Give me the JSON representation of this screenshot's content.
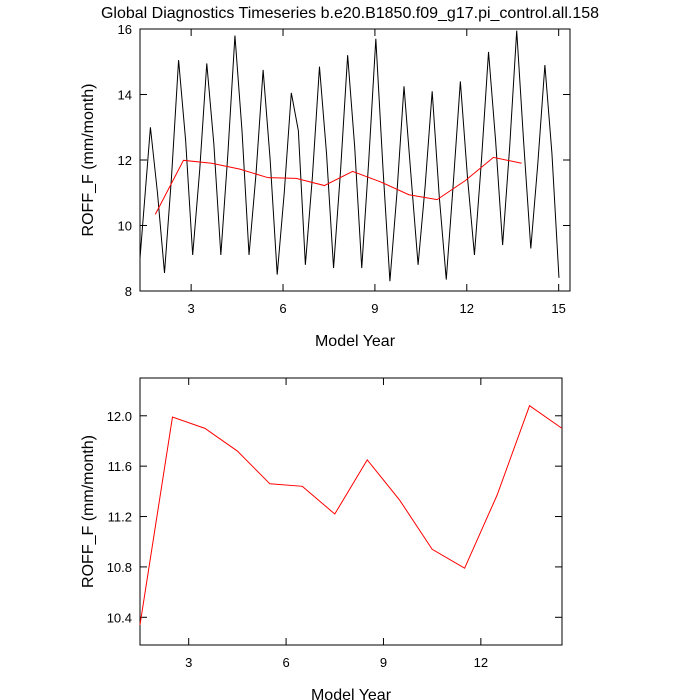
{
  "chart_data": [
    {
      "type": "line",
      "title": "Global Diagnostics Timeseries b.e20.B1850.f09_g17.pi_control.all.158",
      "xlabel": "Model Year",
      "ylabel": "ROFF_F (mm/month)",
      "xlim": [
        1.33,
        15.37
      ],
      "xticks": [
        3,
        6,
        9,
        12,
        15
      ],
      "ylim": [
        8,
        16
      ],
      "yticks": [
        8,
        10,
        12,
        14,
        16
      ],
      "series": [
        {
          "color": "#000000",
          "x": [
            1.33,
            1.5,
            1.67,
            1.9,
            2.13,
            2.36,
            2.59,
            2.82,
            3.05,
            3.28,
            3.51,
            3.74,
            3.97,
            4.2,
            4.43,
            4.66,
            4.89,
            5.12,
            5.35,
            5.58,
            5.81,
            6.04,
            6.27,
            6.5,
            6.73,
            6.96,
            7.19,
            7.42,
            7.65,
            7.88,
            8.11,
            8.34,
            8.57,
            8.8,
            9.03,
            9.26,
            9.49,
            9.72,
            9.95,
            10.18,
            10.41,
            10.64,
            10.87,
            11.1,
            11.33,
            11.56,
            11.79,
            12.02,
            12.25,
            12.48,
            12.71,
            12.94,
            13.17,
            13.4,
            13.63,
            13.86,
            14.09,
            14.32,
            14.55,
            14.78,
            15.01
          ],
          "values": [
            9.0,
            11.0,
            13.0,
            11.0,
            8.55,
            11.5,
            15.05,
            12.6,
            9.1,
            11.7,
            14.95,
            12.5,
            9.1,
            12.2,
            15.8,
            12.9,
            9.1,
            11.6,
            14.75,
            12.0,
            8.5,
            11.0,
            14.05,
            12.9,
            8.8,
            11.5,
            14.85,
            12.2,
            8.7,
            11.7,
            15.2,
            12.4,
            8.7,
            12.0,
            15.7,
            11.8,
            8.3,
            11.0,
            14.25,
            11.5,
            8.8,
            11.2,
            14.1,
            10.9,
            8.35,
            11.3,
            14.4,
            11.5,
            9.1,
            12.0,
            15.3,
            12.6,
            9.4,
            12.4,
            15.95,
            12.5,
            9.3,
            11.9,
            14.9,
            12.2,
            8.4
          ]
        },
        {
          "color": "#ff0000",
          "x": [
            1.83,
            2.75,
            3.67,
            4.59,
            5.51,
            6.43,
            7.35,
            8.27,
            9.19,
            10.11,
            11.03,
            11.95,
            12.87,
            13.79
          ],
          "values": [
            10.34,
            11.99,
            11.9,
            11.72,
            11.46,
            11.44,
            11.22,
            11.65,
            11.33,
            10.94,
            10.79,
            11.37,
            12.08,
            11.9
          ]
        }
      ]
    },
    {
      "type": "line",
      "xlabel": "Model Year",
      "ylabel": "ROFF_F (mm/month)",
      "xlim": [
        1.5,
        14.5
      ],
      "xticks": [
        3,
        6,
        9,
        12
      ],
      "ylim": [
        10.18,
        12.3
      ],
      "yticks": [
        10.4,
        10.8,
        11.2,
        11.6,
        {
          "value": 12,
          "label": "12.0"
        }
      ],
      "series": [
        {
          "color": "#ff0000",
          "x": [
            1.5,
            2.5,
            3.5,
            4.5,
            5.5,
            6.5,
            7.5,
            8.5,
            9.5,
            10.5,
            11.5,
            12.5,
            13.5,
            14.5
          ],
          "values": [
            10.34,
            11.99,
            11.9,
            11.72,
            11.46,
            11.44,
            11.22,
            11.65,
            11.33,
            10.94,
            10.79,
            11.37,
            12.08,
            11.9
          ]
        }
      ]
    }
  ]
}
